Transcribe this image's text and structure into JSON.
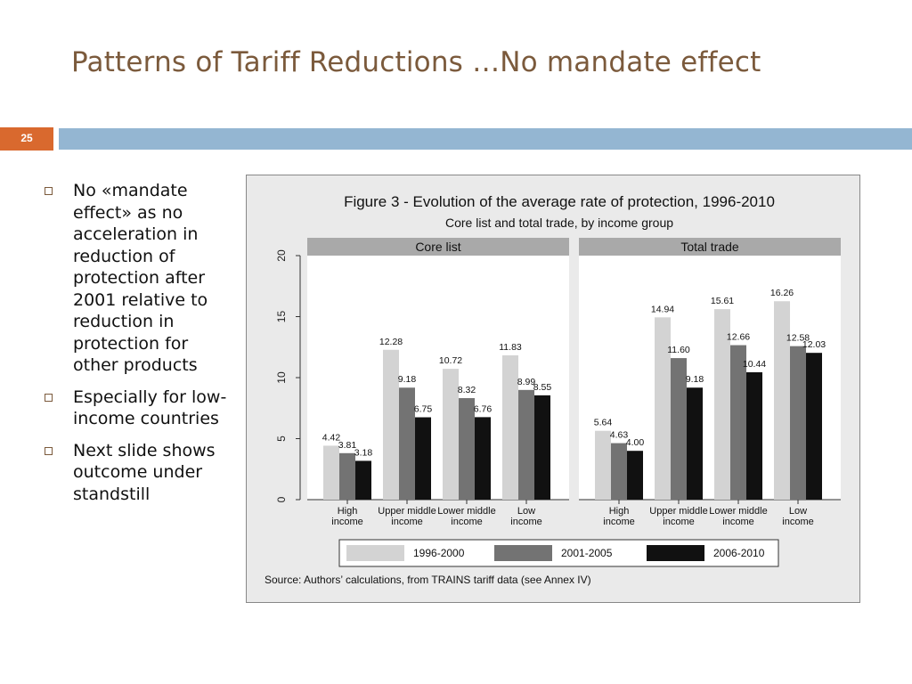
{
  "slide": {
    "title": "Patterns of Tariff Reductions …No mandate effect",
    "page_number": "25",
    "bullets": [
      "No «mandate effect» as no acceleration in reduction of protection after 2001 relative to reduction in protection for other products",
      "Especially for low-income countries",
      "Next slide shows outcome under standstill"
    ]
  },
  "colors": {
    "title": "#7b5a3c",
    "page_number_bg": "#d9692e",
    "accent_bar": "#94b6d2",
    "series_1996_2000": "#d3d3d3",
    "series_2001_2005": "#737373",
    "series_2006_2010": "#111111"
  },
  "chart_data": {
    "type": "bar",
    "title": "Figure 3 - Evolution of the average rate of protection, 1996-2010",
    "subtitle": "Core list and total trade, by income group",
    "source": "Source: Authors’ calculations, from TRAINS tariff data (see Annex IV)",
    "ylim": [
      0,
      20
    ],
    "yticks": [
      0,
      5,
      10,
      15,
      20
    ],
    "grid": false,
    "legend_position": "bottom",
    "series_names": [
      "1996-2000",
      "2001-2005",
      "2006-2010"
    ],
    "categories": [
      [
        "High",
        "income"
      ],
      [
        "Upper middle",
        "income"
      ],
      [
        "Lower middle",
        "income"
      ],
      [
        "Low",
        "income"
      ]
    ],
    "panels": [
      {
        "title": "Core list",
        "series": [
          {
            "name": "1996-2000",
            "values": [
              4.42,
              12.28,
              10.72,
              11.83
            ],
            "labels": [
              "4.42",
              "12.28",
              "10.72",
              "11.83"
            ]
          },
          {
            "name": "2001-2005",
            "values": [
              3.81,
              9.18,
              8.32,
              8.99
            ],
            "labels": [
              "3.81",
              "9.18",
              "8.32",
              "8.99"
            ]
          },
          {
            "name": "2006-2010",
            "values": [
              3.18,
              6.75,
              6.76,
              8.55
            ],
            "labels": [
              "3.18",
              "6.75",
              "6.76",
              "8.55"
            ]
          }
        ]
      },
      {
        "title": "Total trade",
        "series": [
          {
            "name": "1996-2000",
            "values": [
              5.64,
              14.94,
              15.61,
              16.26
            ],
            "labels": [
              "5.64",
              "14.94",
              "15.61",
              "16.26"
            ]
          },
          {
            "name": "2001-2005",
            "values": [
              4.63,
              11.6,
              12.66,
              12.58
            ],
            "labels": [
              "4.63",
              "11.60",
              "12.66",
              "12.58"
            ]
          },
          {
            "name": "2006-2010",
            "values": [
              4.0,
              9.18,
              10.44,
              12.03
            ],
            "labels": [
              "4.00",
              "9.18",
              "10.44",
              "12.03"
            ]
          }
        ]
      }
    ]
  }
}
